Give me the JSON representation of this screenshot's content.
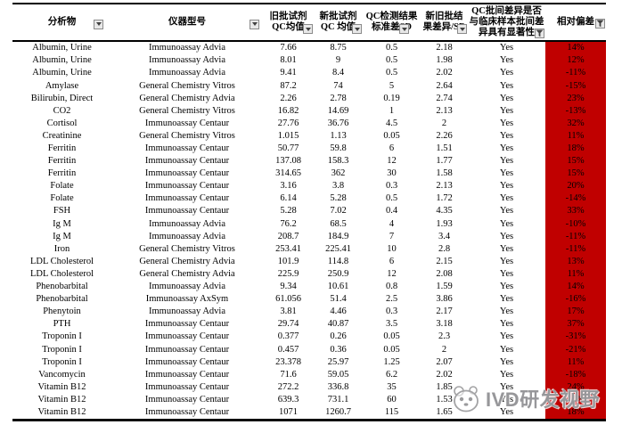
{
  "colors": {
    "highlight_red": "#C00000"
  },
  "watermark": {
    "text": "IVD研发视野",
    "logo": "panda-mascot-icon"
  },
  "table": {
    "columns": [
      {
        "label": "分析物",
        "filter": "dropdown"
      },
      {
        "label": "仪器型号",
        "filter": "dropdown"
      },
      {
        "label": "旧批试剂QC均值",
        "filter": "dropdown"
      },
      {
        "label": "新批试剂QC 均值",
        "filter": "dropdown"
      },
      {
        "label": "QC检测结果标准差SD",
        "filter": "dropdown"
      },
      {
        "label": "新旧批结果差异/SD",
        "filter": "dropdown"
      },
      {
        "label": "QC批间差异是否与临床样本批间差异具有显著性",
        "filter": "funnel-active"
      },
      {
        "label": "相对偏差",
        "filter": "funnel-active"
      }
    ],
    "rows": [
      [
        "Albumin, Urine",
        "Immunoassay Advia",
        "7.66",
        "8.75",
        "0.5",
        "2.18",
        "Yes",
        "14%"
      ],
      [
        "Albumin, Urine",
        "Immunoassay Advia",
        "8.01",
        "9",
        "0.5",
        "1.98",
        "Yes",
        "12%"
      ],
      [
        "Albumin, Urine",
        "Immunoassay Advia",
        "9.41",
        "8.4",
        "0.5",
        "2.02",
        "Yes",
        "-11%"
      ],
      [
        "Amylase",
        "General Chemistry Vitros",
        "87.2",
        "74",
        "5",
        "2.64",
        "Yes",
        "-15%"
      ],
      [
        "Bilirubin, Direct",
        "General Chemistry Advia",
        "2.26",
        "2.78",
        "0.19",
        "2.74",
        "Yes",
        "23%"
      ],
      [
        "CO2",
        "General Chemistry Vitros",
        "16.82",
        "14.69",
        "1",
        "2.13",
        "Yes",
        "-13%"
      ],
      [
        "Cortisol",
        "Immunoassay Centaur",
        "27.76",
        "36.76",
        "4.5",
        "2",
        "Yes",
        "32%"
      ],
      [
        "Creatinine",
        "General Chemistry Vitros",
        "1.015",
        "1.13",
        "0.05",
        "2.26",
        "Yes",
        "11%"
      ],
      [
        "Ferritin",
        "Immunoassay Centaur",
        "50.77",
        "59.8",
        "6",
        "1.51",
        "Yes",
        "18%"
      ],
      [
        "Ferritin",
        "Immunoassay Centaur",
        "137.08",
        "158.3",
        "12",
        "1.77",
        "Yes",
        "15%"
      ],
      [
        "Ferritin",
        "Immunoassay Centaur",
        "314.65",
        "362",
        "30",
        "1.58",
        "Yes",
        "15%"
      ],
      [
        "Folate",
        "Immunoassay Centaur",
        "3.16",
        "3.8",
        "0.3",
        "2.13",
        "Yes",
        "20%"
      ],
      [
        "Folate",
        "Immunoassay Centaur",
        "6.14",
        "5.28",
        "0.5",
        "1.72",
        "Yes",
        "-14%"
      ],
      [
        "FSH",
        "Immunoassay Centaur",
        "5.28",
        "7.02",
        "0.4",
        "4.35",
        "Yes",
        "33%"
      ],
      [
        "Ig M",
        "Immunoassay Advia",
        "76.2",
        "68.5",
        "4",
        "1.93",
        "Yes",
        "-10%"
      ],
      [
        "Ig M",
        "Immunoassay Advia",
        "208.7",
        "184.9",
        "7",
        "3.4",
        "Yes",
        "-11%"
      ],
      [
        "Iron",
        "General Chemistry Vitros",
        "253.41",
        "225.41",
        "10",
        "2.8",
        "Yes",
        "-11%"
      ],
      [
        "LDL Cholesterol",
        "General Chemistry Advia",
        "101.9",
        "114.8",
        "6",
        "2.15",
        "Yes",
        "13%"
      ],
      [
        "LDL Cholesterol",
        "General Chemistry Advia",
        "225.9",
        "250.9",
        "12",
        "2.08",
        "Yes",
        "11%"
      ],
      [
        "Phenobarbital",
        "Immunoassay Advia",
        "9.34",
        "10.61",
        "0.8",
        "1.59",
        "Yes",
        "14%"
      ],
      [
        "Phenobarbital",
        "Immunoassay AxSym",
        "61.056",
        "51.4",
        "2.5",
        "3.86",
        "Yes",
        "-16%"
      ],
      [
        "Phenytoin",
        "Immunoassay Advia",
        "3.81",
        "4.46",
        "0.3",
        "2.17",
        "Yes",
        "17%"
      ],
      [
        "PTH",
        "Immunoassay Centaur",
        "29.74",
        "40.87",
        "3.5",
        "3.18",
        "Yes",
        "37%"
      ],
      [
        "Troponin I",
        "Immunoassay Centaur",
        "0.377",
        "0.26",
        "0.05",
        "2.3",
        "Yes",
        "-31%"
      ],
      [
        "Troponin I",
        "Immunoassay Centaur",
        "0.457",
        "0.36",
        "0.05",
        "2",
        "Yes",
        "-21%"
      ],
      [
        "Troponin I",
        "Immunoassay Centaur",
        "23.378",
        "25.97",
        "1.25",
        "2.07",
        "Yes",
        "11%"
      ],
      [
        "Vancomycin",
        "Immunoassay Centaur",
        "71.6",
        "59.05",
        "6.2",
        "2.02",
        "Yes",
        "-18%"
      ],
      [
        "Vitamin B12",
        "Immunoassay Centaur",
        "272.2",
        "336.8",
        "35",
        "1.85",
        "Yes",
        "24%"
      ],
      [
        "Vitamin B12",
        "Immunoassay Centaur",
        "639.3",
        "731.1",
        "60",
        "1.53",
        "Yes",
        "14%"
      ],
      [
        "Vitamin B12",
        "Immunoassay Centaur",
        "1071",
        "1260.7",
        "115",
        "1.65",
        "Yes",
        "18%"
      ]
    ]
  }
}
